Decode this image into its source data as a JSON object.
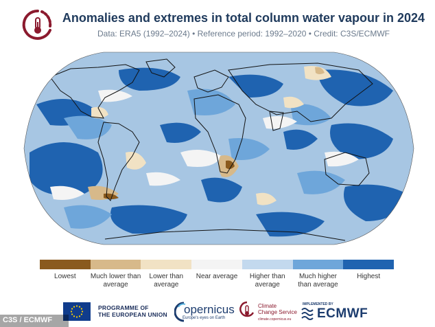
{
  "header": {
    "title": "Anomalies and extremes in total column water vapour in 2024",
    "subtitle": "Data: ERA5 (1992–2024) • Reference period: 1992–2020 • Credit: C3S/ECMWF",
    "logo_icon": "thermometer-dial-icon",
    "logo_color": "#8b1a2e"
  },
  "map": {
    "projection": "robinson",
    "ocean_base_color": "#a7c6e3",
    "land_outline_color": "#111111"
  },
  "legend": {
    "items": [
      {
        "label": "Lowest",
        "color": "#8a5a1e"
      },
      {
        "label": "Much lower than average",
        "color": "#d7b98a"
      },
      {
        "label": "Lower than average",
        "color": "#f1e2c4"
      },
      {
        "label": "Near average",
        "color": "#f4f4f4"
      },
      {
        "label": "Higher than average",
        "color": "#c3d9ee"
      },
      {
        "label": "Much higher than average",
        "color": "#6ea6da"
      },
      {
        "label": "Highest",
        "color": "#1f63b0"
      }
    ]
  },
  "footer": {
    "eu_text_line1": "PROGRAMME OF",
    "eu_text_line2": "THE EUROPEAN UNION",
    "copernicus_name": "opernicus",
    "copernicus_sub": "Europe's eyes on Earth",
    "c3s_line1": "Climate",
    "c3s_line2": "Change Service",
    "c3s_sub": "climate.copernicus.eu",
    "ecmwf_impl": "IMPLEMENTED BY",
    "ecmwf_name": "ECMWF"
  },
  "credit": "C3S / ECMWF"
}
